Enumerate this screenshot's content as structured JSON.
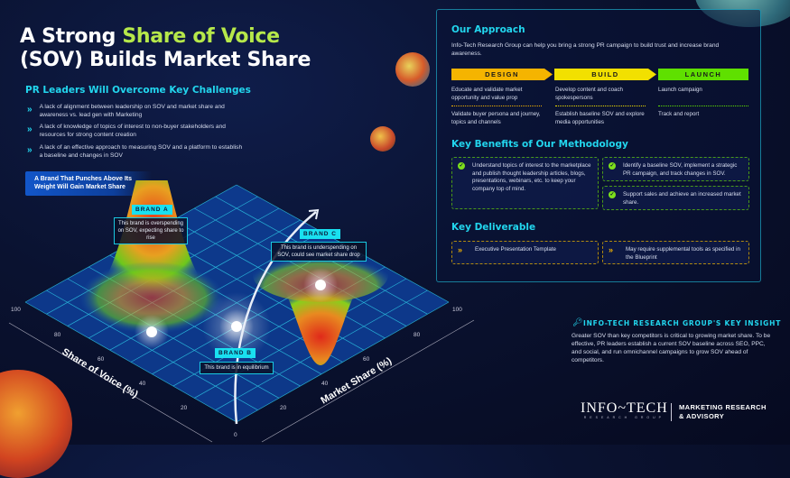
{
  "title": {
    "part1": "A Strong ",
    "highlight": "Share of Voice",
    "part2": "(SOV) Builds Market Share"
  },
  "challenges": {
    "heading": "PR Leaders Will Overcome Key Challenges",
    "items": [
      "A lack of alignment between leadership on SOV and market share and awareness vs. lead gen with Marketing",
      "A lack of knowledge of topics of interest to non-buyer stakeholders and resources for strong content creation",
      "A lack of an effective approach to measuring SOV and a platform to establish a baseline and changes in SOV"
    ]
  },
  "callout": "A Brand That Punches Above Its Weight Will Gain Market Share",
  "chart": {
    "x_axis_label": "Share of Voice (%)",
    "y_axis_label": "Market Share (%)",
    "left_ticks": [
      "100",
      "80",
      "60",
      "40",
      "20"
    ],
    "right_ticks": [
      "100",
      "80",
      "60",
      "40",
      "20"
    ],
    "origin": "0",
    "brands": [
      {
        "tag": "BRAND A",
        "desc": "This brand is overspending on SOV, expecting share to rise"
      },
      {
        "tag": "BRAND B",
        "desc": "This brand is in equilibrium"
      },
      {
        "tag": "BRAND C",
        "desc": "This brand is underspending on SOV, could see market share drop"
      }
    ]
  },
  "approach": {
    "heading": "Our Approach",
    "desc": "Info-Tech Research Group can help you bring a strong PR campaign to build trust and increase brand awareness.",
    "phases": [
      {
        "label": "DESIGN",
        "color": "#f5b400",
        "items": [
          "Educate and validate market opportunity and value prop",
          "Validate buyer persona and journey, topics and channels"
        ]
      },
      {
        "label": "BUILD",
        "color": "#f2e000",
        "items": [
          "Develop content and coach spokespersons",
          "Establish baseline SOV and explore media opportunities"
        ]
      },
      {
        "label": "LAUNCH",
        "color": "#5fe000",
        "items": [
          "Launch campaign",
          "Track and report"
        ]
      }
    ]
  },
  "benefits": {
    "heading": "Key Benefits of Our Methodology",
    "items": [
      "Understand topics of interest to the marketplace and publish thought leadership articles, blogs, presentations, webinars, etc. to keep your company top of mind.",
      "Identify a baseline SOV, implement a strategic PR campaign, and track changes in SOV.",
      "Support sales and achieve an increased market share."
    ]
  },
  "deliverable": {
    "heading": "Key Deliverable",
    "items": [
      "Executive Presentation Template",
      "May require supplemental tools as specified in the Blueprint"
    ]
  },
  "insight": {
    "heading": "INFO-TECH RESEARCH GROUP'S KEY INSIGHT",
    "text": "Greater SOV than key competitors is critical to growing market share. To be effective, PR leaders establish a current SOV baseline across SEO, PPC, and social, and run omnichannel campaigns to grow SOV ahead of competitors."
  },
  "footer": {
    "logo": "INFO~TECH",
    "logo_sub": "RESEARCH GROUP",
    "division": "MARKETING RESEARCH & ADVISORY"
  }
}
